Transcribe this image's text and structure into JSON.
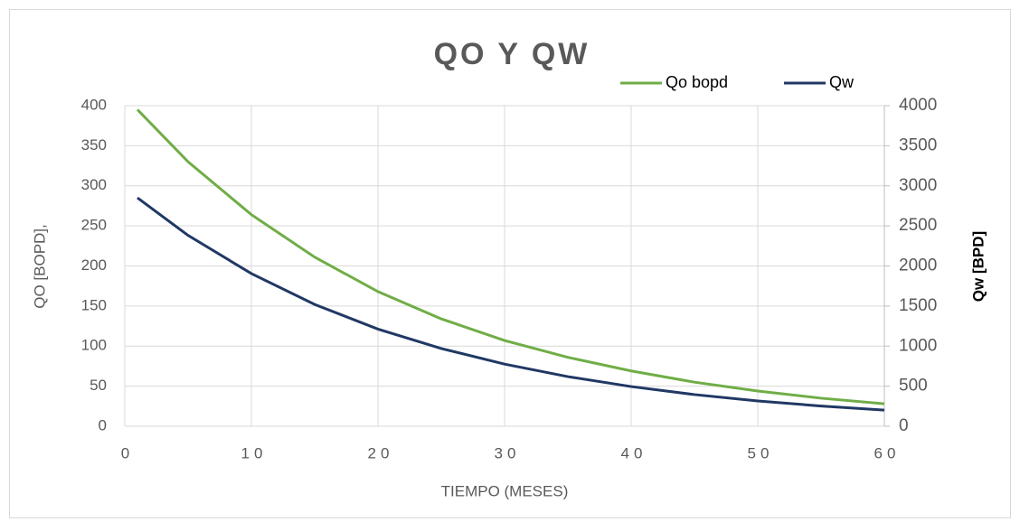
{
  "chart_data": {
    "type": "line",
    "title": "QO Y QW",
    "x_label": "TIEMPO (MESES)",
    "y_label": "QO [BOPD],",
    "y2_label": "Qw [BPD]",
    "x": [
      1,
      5,
      10,
      15,
      20,
      25,
      30,
      35,
      40,
      45,
      50,
      55,
      60
    ],
    "series": [
      {
        "name": "Qo bopd",
        "color": "#70ad47",
        "values": [
          395,
          330,
          264,
          211,
          168,
          134,
          107,
          86,
          69,
          55,
          44,
          35,
          28
        ]
      },
      {
        "name": "Qw",
        "color": "#203864",
        "axis": "y2",
        "values": [
          2850,
          2381,
          1905,
          1520,
          1212,
          970,
          775,
          619,
          495,
          395,
          316,
          252,
          202
        ]
      }
    ],
    "xlim": [
      0,
      60
    ],
    "xticks": [
      0,
      10,
      20,
      30,
      40,
      50,
      60
    ],
    "ylim": [
      0,
      400
    ],
    "yticks": [
      0,
      50,
      100,
      150,
      200,
      250,
      300,
      350,
      400
    ],
    "y2lim": [
      0,
      4000
    ],
    "y2ticks": [
      0,
      500,
      1000,
      1500,
      2000,
      2500,
      3000,
      3500,
      4000
    ],
    "grid": true,
    "legend": "top-right"
  }
}
